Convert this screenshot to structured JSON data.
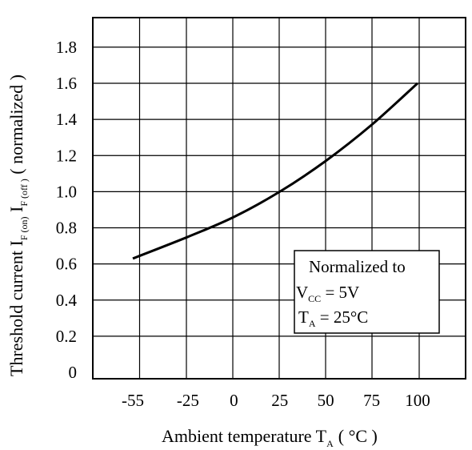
{
  "chart_data": {
    "type": "line",
    "title": "",
    "xlabel": {
      "text": "Ambient temperature T",
      "sub": "A",
      "unit": "( °C )"
    },
    "ylabel": {
      "prefix": "Threshold current I",
      "sub1": "F (on)",
      "mid": " I",
      "sub2": "F (off )",
      "suffix": " ( normalized )"
    },
    "x_ticks": [
      -55,
      -25,
      0,
      25,
      50,
      75,
      100
    ],
    "y_ticks": [
      "0",
      "0.2",
      "0.4",
      "0.6",
      "0.8",
      "1.0",
      "1.2",
      "1.4",
      "1.6",
      "1.8"
    ],
    "x": [
      -55,
      -25,
      0,
      25,
      50,
      75,
      100
    ],
    "series": [
      {
        "values": [
          0.63,
          0.75,
          0.86,
          1.0,
          1.17,
          1.37,
          1.6
        ]
      }
    ],
    "grid": true,
    "note": {
      "line1": "Normalized to",
      "line2_main": "V",
      "line2_sub": "CC",
      "line2_rest": " = 5V",
      "line3_main": "T",
      "line3_sub": "A",
      "line3_rest": " = 25°C"
    },
    "colors": {
      "line": "#000000",
      "grid": "#000000",
      "background": "#ffffff"
    }
  }
}
